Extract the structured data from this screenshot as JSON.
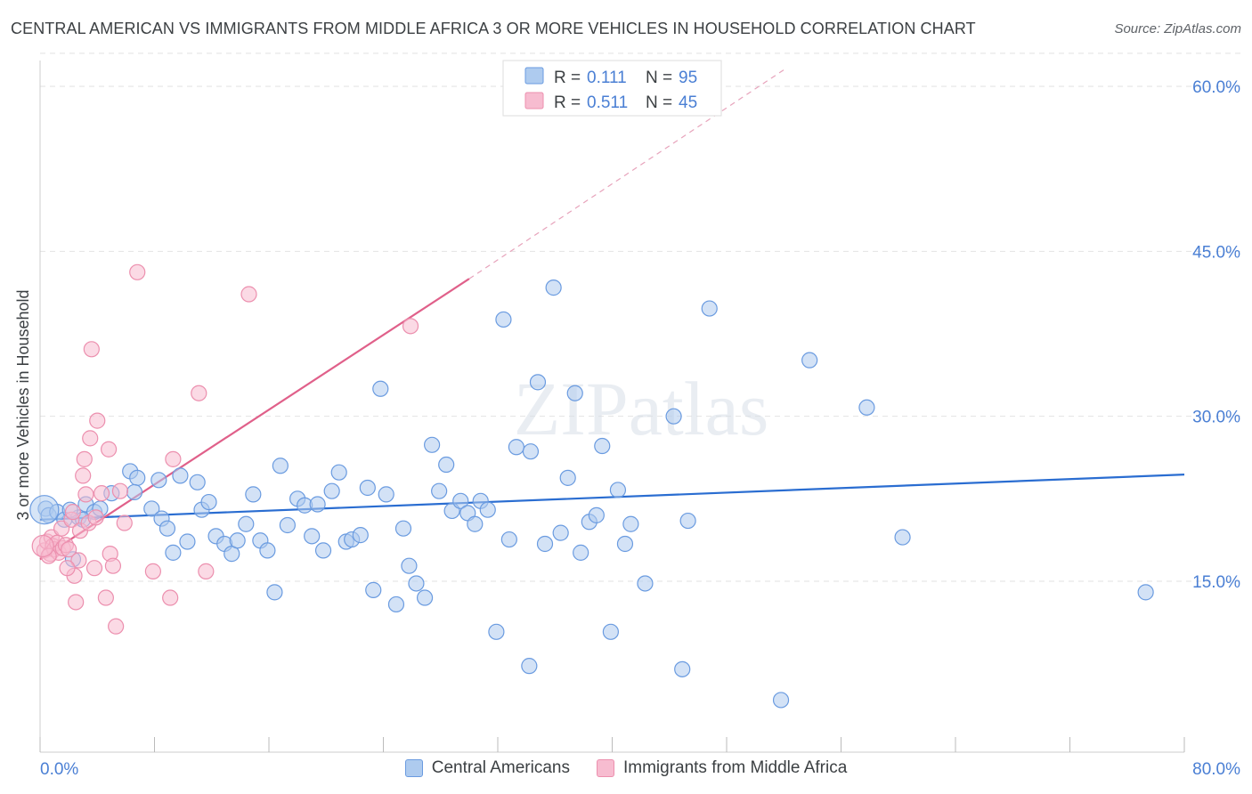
{
  "header": {
    "title": "CENTRAL AMERICAN VS IMMIGRANTS FROM MIDDLE AFRICA 3 OR MORE VEHICLES IN HOUSEHOLD CORRELATION CHART",
    "source": "Source: ZipAtlas.com"
  },
  "watermark": "ZIPatlas",
  "legend_top": [
    {
      "r_label": "R =",
      "r_value": "0.111",
      "n_label": "N =",
      "n_value": "95"
    },
    {
      "r_label": "R =",
      "r_value": "0.511",
      "n_label": "N =",
      "n_value": "45"
    }
  ],
  "colors": {
    "blue_fill": "#aecbef",
    "blue_stroke": "#6a9be0",
    "blue_line": "#2a6dd1",
    "pink_fill": "#f7bcd0",
    "pink_stroke": "#ec8fae",
    "pink_line": "#e0608a",
    "accent_text": "#4a7fd4",
    "grid": "#e2e2e2"
  },
  "chart_data": {
    "type": "scatter",
    "title": "CENTRAL AMERICAN VS IMMIGRANTS FROM MIDDLE AFRICA 3 OR MORE VEHICLES IN HOUSEHOLD CORRELATION CHART",
    "xlabel": "",
    "ylabel": "3 or more Vehicles in Household",
    "xlim": [
      0,
      80
    ],
    "ylim": [
      0,
      63
    ],
    "x_tick_labels": [
      "0.0%",
      "80.0%"
    ],
    "y_ticks": [
      15,
      30,
      45,
      60
    ],
    "y_tick_labels": [
      "15.0%",
      "30.0%",
      "45.0%",
      "60.0%"
    ],
    "grid": true,
    "legend_position": "bottom",
    "series": [
      {
        "name": "Central Americans",
        "r": 0.111,
        "n": 95,
        "trend": {
          "x": [
            0,
            80
          ],
          "y": [
            20.6,
            24.7
          ]
        },
        "points": [
          [
            0.4,
            21.6
          ],
          [
            0.6,
            21.0
          ],
          [
            1.2,
            21.3
          ],
          [
            1.7,
            20.6
          ],
          [
            2.3,
            17.0
          ],
          [
            2.7,
            20.8
          ],
          [
            3.0,
            20.6
          ],
          [
            3.2,
            22.0
          ],
          [
            3.8,
            21.3
          ],
          [
            4.2,
            21.6
          ],
          [
            5.0,
            23.0
          ],
          [
            6.3,
            25.0
          ],
          [
            6.8,
            24.4
          ],
          [
            7.8,
            21.6
          ],
          [
            8.3,
            24.2
          ],
          [
            8.5,
            20.7
          ],
          [
            8.9,
            19.8
          ],
          [
            9.3,
            17.6
          ],
          [
            9.8,
            24.6
          ],
          [
            10.3,
            18.6
          ],
          [
            11.0,
            24.0
          ],
          [
            11.3,
            21.5
          ],
          [
            11.8,
            22.2
          ],
          [
            12.3,
            19.1
          ],
          [
            12.9,
            18.4
          ],
          [
            13.4,
            17.5
          ],
          [
            13.8,
            18.7
          ],
          [
            14.4,
            20.2
          ],
          [
            14.9,
            22.9
          ],
          [
            15.4,
            18.7
          ],
          [
            15.9,
            17.8
          ],
          [
            16.4,
            14.0
          ],
          [
            16.8,
            25.5
          ],
          [
            17.3,
            20.1
          ],
          [
            18.0,
            22.5
          ],
          [
            18.5,
            21.9
          ],
          [
            19.0,
            19.1
          ],
          [
            19.4,
            22.0
          ],
          [
            19.8,
            17.8
          ],
          [
            20.4,
            23.2
          ],
          [
            20.9,
            24.9
          ],
          [
            21.4,
            18.6
          ],
          [
            21.8,
            18.8
          ],
          [
            22.4,
            19.2
          ],
          [
            22.9,
            23.5
          ],
          [
            23.3,
            14.2
          ],
          [
            23.8,
            32.5
          ],
          [
            24.2,
            22.9
          ],
          [
            24.9,
            12.9
          ],
          [
            25.4,
            19.8
          ],
          [
            25.8,
            16.4
          ],
          [
            26.3,
            14.8
          ],
          [
            26.9,
            13.5
          ],
          [
            27.4,
            27.4
          ],
          [
            27.9,
            23.2
          ],
          [
            28.4,
            25.6
          ],
          [
            28.8,
            21.4
          ],
          [
            29.4,
            22.3
          ],
          [
            29.9,
            21.2
          ],
          [
            30.4,
            20.2
          ],
          [
            30.8,
            22.3
          ],
          [
            31.3,
            21.5
          ],
          [
            31.9,
            10.4
          ],
          [
            32.4,
            38.8
          ],
          [
            32.8,
            18.8
          ],
          [
            33.3,
            27.2
          ],
          [
            34.3,
            26.8
          ],
          [
            34.8,
            33.1
          ],
          [
            35.3,
            18.4
          ],
          [
            35.9,
            41.7
          ],
          [
            36.4,
            19.4
          ],
          [
            36.9,
            24.4
          ],
          [
            37.4,
            32.1
          ],
          [
            37.8,
            17.6
          ],
          [
            38.4,
            20.4
          ],
          [
            38.9,
            21.0
          ],
          [
            39.3,
            27.3
          ],
          [
            39.9,
            10.4
          ],
          [
            40.4,
            23.3
          ],
          [
            40.9,
            18.4
          ],
          [
            41.3,
            20.2
          ],
          [
            42.3,
            14.8
          ],
          [
            44.3,
            30.0
          ],
          [
            45.3,
            20.5
          ],
          [
            46.8,
            39.8
          ],
          [
            51.8,
            4.2
          ],
          [
            53.8,
            35.1
          ],
          [
            57.8,
            30.8
          ],
          [
            34.2,
            7.3
          ],
          [
            44.9,
            7.0
          ],
          [
            60.3,
            19.0
          ],
          [
            77.3,
            14.0
          ],
          [
            43.8,
            58.3
          ],
          [
            2.1,
            21.5
          ],
          [
            6.6,
            23.1
          ]
        ]
      },
      {
        "name": "Immigrants from Middle Africa",
        "r": 0.511,
        "n": 45,
        "trend": {
          "x": [
            0,
            30
          ],
          "y": [
            17.0,
            42.5
          ]
        },
        "trend_dashed": {
          "x": [
            30,
            52
          ],
          "y": [
            42.5,
            61.5
          ]
        },
        "points": [
          [
            0.3,
            17.8
          ],
          [
            0.5,
            18.6
          ],
          [
            0.7,
            17.5
          ],
          [
            0.8,
            19.0
          ],
          [
            0.9,
            18.2
          ],
          [
            1.0,
            17.9
          ],
          [
            1.2,
            18.5
          ],
          [
            1.3,
            17.6
          ],
          [
            1.5,
            19.8
          ],
          [
            1.6,
            18.0
          ],
          [
            1.8,
            18.3
          ],
          [
            2.0,
            17.9
          ],
          [
            2.2,
            20.6
          ],
          [
            2.3,
            21.3
          ],
          [
            2.4,
            15.5
          ],
          [
            2.5,
            13.1
          ],
          [
            2.7,
            16.9
          ],
          [
            2.8,
            19.6
          ],
          [
            3.0,
            24.6
          ],
          [
            3.1,
            26.1
          ],
          [
            3.2,
            22.9
          ],
          [
            3.4,
            20.3
          ],
          [
            3.5,
            28.0
          ],
          [
            3.6,
            36.1
          ],
          [
            3.8,
            16.2
          ],
          [
            3.9,
            20.8
          ],
          [
            4.0,
            29.6
          ],
          [
            4.3,
            23.0
          ],
          [
            4.6,
            13.5
          ],
          [
            4.8,
            27.0
          ],
          [
            4.9,
            17.5
          ],
          [
            5.1,
            16.4
          ],
          [
            5.3,
            10.9
          ],
          [
            5.6,
            23.2
          ],
          [
            5.9,
            20.3
          ],
          [
            6.8,
            43.1
          ],
          [
            7.9,
            15.9
          ],
          [
            9.1,
            13.5
          ],
          [
            9.3,
            26.1
          ],
          [
            11.1,
            32.1
          ],
          [
            11.6,
            15.9
          ],
          [
            14.6,
            41.1
          ],
          [
            25.9,
            38.2
          ],
          [
            0.6,
            17.3
          ],
          [
            1.9,
            16.2
          ]
        ]
      }
    ]
  },
  "legend_bottom": {
    "items": [
      {
        "label": "Central Americans"
      },
      {
        "label": "Immigrants from Middle Africa"
      }
    ]
  }
}
